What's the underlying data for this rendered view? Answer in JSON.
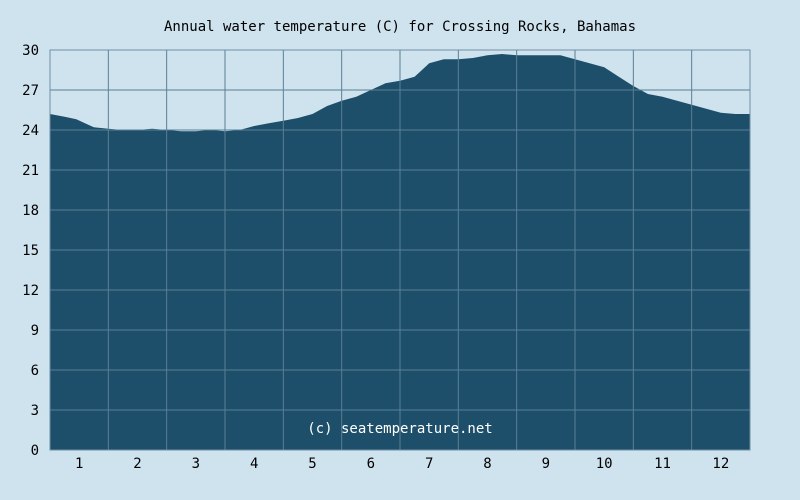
{
  "chart_data": {
    "type": "area",
    "title": "Annual water temperature (C) for Crossing Rocks, Bahamas",
    "xlabel": "",
    "ylabel": "",
    "x_ticks": [
      "1",
      "2",
      "3",
      "4",
      "5",
      "6",
      "7",
      "8",
      "9",
      "10",
      "11",
      "12"
    ],
    "y_ticks": [
      "0",
      "3",
      "6",
      "9",
      "12",
      "15",
      "18",
      "21",
      "24",
      "27",
      "30"
    ],
    "xlim": [
      0.5,
      12.5
    ],
    "ylim": [
      0,
      30
    ],
    "grid": true,
    "series": [
      {
        "x": [
          0.5,
          0.75,
          0.95,
          1.1,
          1.25,
          1.5,
          1.75,
          2.0,
          2.25,
          2.5,
          2.75,
          3.0,
          3.25,
          3.5,
          3.75,
          4.0,
          4.25,
          4.5,
          4.75,
          5.0,
          5.25,
          5.5,
          5.75,
          6.0,
          6.25,
          6.5,
          6.75,
          6.9,
          7.0,
          7.25,
          7.5,
          7.75,
          8.0,
          8.25,
          8.5,
          8.75,
          9.0,
          9.25,
          9.5,
          9.75,
          10.0,
          10.25,
          10.5,
          10.75,
          11.0,
          11.25,
          11.5,
          11.75,
          12.0,
          12.25,
          12.5
        ],
        "values": [
          25.2,
          25.0,
          24.8,
          24.5,
          24.2,
          24.1,
          24.0,
          24.0,
          24.1,
          24.0,
          23.9,
          23.9,
          24.0,
          23.9,
          24.0,
          24.3,
          24.5,
          24.7,
          24.9,
          25.2,
          25.8,
          26.2,
          26.5,
          27.0,
          27.5,
          27.7,
          28.0,
          28.6,
          29.0,
          29.3,
          29.3,
          29.4,
          29.6,
          29.7,
          29.6,
          29.6,
          29.6,
          29.6,
          29.3,
          29.0,
          28.7,
          28.0,
          27.3,
          26.7,
          26.5,
          26.2,
          25.9,
          25.6,
          25.3,
          25.2,
          25.2
        ]
      }
    ],
    "colors": {
      "background": "#cfe3ef",
      "plot_background": "#cfe3ef",
      "area_fill": "#1e4f6a",
      "grid": "#5a7f96",
      "frame": "#6f8ea4",
      "text": "#000000",
      "watermark_text": "#ffffff"
    },
    "watermark": "(c) seatemperature.net"
  }
}
